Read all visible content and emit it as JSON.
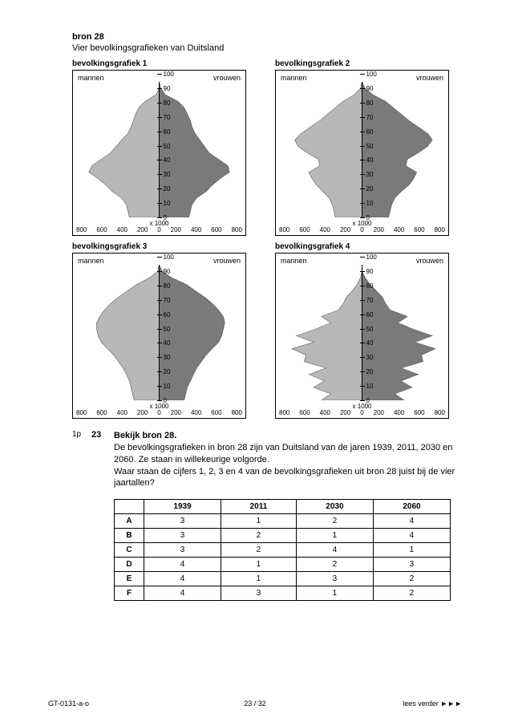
{
  "source": {
    "label": "bron 28",
    "title": "Vier bevolkingsgrafieken van Duitsland"
  },
  "axis_unit": "x 1000",
  "x_ticks_left": [
    "800",
    "600",
    "400",
    "200",
    "0"
  ],
  "x_ticks_right": [
    "0",
    "200",
    "400",
    "600",
    "800"
  ],
  "y_ticks": [
    100,
    90,
    80,
    70,
    60,
    50,
    40,
    30,
    20,
    10,
    0
  ],
  "colors": {
    "male": "#b8b8b8",
    "female": "#7a7a7a",
    "border": "#000000",
    "bg": "#ffffff"
  },
  "charts": [
    {
      "title": "bevolkingsgrafiek 1",
      "label_left": "mannen",
      "label_right": "vrouwen",
      "male": [
        0,
        0,
        4,
        18,
        26,
        30,
        33,
        36,
        40,
        48,
        55,
        62,
        74,
        86,
        90,
        78,
        68,
        60,
        48,
        42,
        40,
        38
      ],
      "female": [
        0,
        2,
        8,
        24,
        32,
        36,
        40,
        42,
        46,
        52,
        58,
        64,
        76,
        88,
        90,
        78,
        68,
        60,
        48,
        42,
        40,
        38
      ]
    },
    {
      "title": "bevolkingsgrafiek 2",
      "label_left": "mannen",
      "label_right": "vrouwen",
      "male": [
        0,
        2,
        10,
        24,
        34,
        44,
        54,
        66,
        78,
        86,
        82,
        70,
        56,
        54,
        68,
        64,
        58,
        50,
        42,
        38,
        36,
        34
      ],
      "female": [
        0,
        4,
        14,
        30,
        40,
        50,
        60,
        72,
        84,
        90,
        84,
        72,
        58,
        56,
        70,
        66,
        60,
        50,
        42,
        38,
        36,
        34
      ]
    },
    {
      "title": "bevolkingsgrafiek 3",
      "label_left": "mannen",
      "label_right": "vrouwen",
      "male": [
        0,
        2,
        12,
        28,
        40,
        52,
        62,
        70,
        76,
        80,
        80,
        78,
        74,
        66,
        58,
        52,
        46,
        42,
        38,
        36,
        34,
        32
      ],
      "female": [
        0,
        4,
        16,
        34,
        46,
        58,
        68,
        76,
        82,
        84,
        82,
        80,
        76,
        68,
        60,
        54,
        48,
        44,
        40,
        36,
        34,
        32
      ]
    },
    {
      "title": "bevolkingsgrafiek 4",
      "label_left": "mannen",
      "label_right": "vrouwen",
      "male": [
        0,
        0,
        2,
        6,
        12,
        20,
        24,
        30,
        52,
        40,
        60,
        84,
        62,
        90,
        72,
        74,
        46,
        68,
        48,
        62,
        40,
        52
      ],
      "female": [
        0,
        0,
        4,
        10,
        18,
        26,
        30,
        36,
        58,
        46,
        66,
        90,
        68,
        94,
        76,
        78,
        50,
        72,
        50,
        64,
        42,
        54
      ]
    }
  ],
  "question": {
    "points": "1p",
    "number": "23",
    "lead": "Bekijk bron 28.",
    "body": "De bevolkingsgrafieken in bron 28 zijn van Duitsland van de jaren 1939, 2011, 2030 en 2060. Ze staan in willekeurige volgorde.\nWaar staan de cijfers 1, 2, 3 en 4 van de bevolkingsgrafieken uit bron 28 juist bij de vier jaartallen?"
  },
  "table": {
    "headers": [
      "",
      "1939",
      "2011",
      "2030",
      "2060"
    ],
    "rows": [
      [
        "A",
        "3",
        "1",
        "2",
        "4"
      ],
      [
        "B",
        "3",
        "2",
        "1",
        "4"
      ],
      [
        "C",
        "3",
        "2",
        "4",
        "1"
      ],
      [
        "D",
        "4",
        "1",
        "2",
        "3"
      ],
      [
        "E",
        "4",
        "1",
        "3",
        "2"
      ],
      [
        "F",
        "4",
        "3",
        "1",
        "2"
      ]
    ]
  },
  "footer": {
    "left": "GT-0131-a-o",
    "center": "23 / 32",
    "right": "lees verder ►►►"
  }
}
